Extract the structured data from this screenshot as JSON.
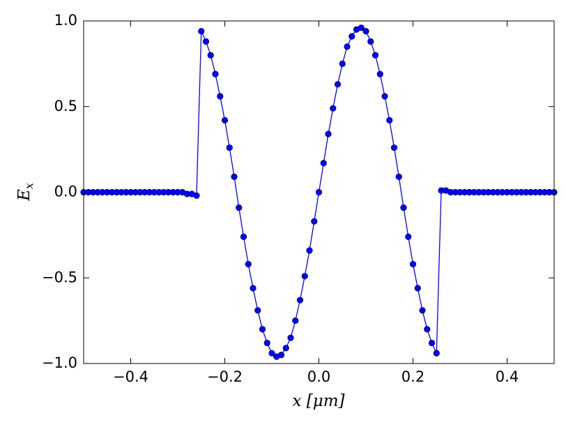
{
  "chart_data": {
    "type": "line",
    "xlabel": "x [μm]",
    "ylabel": {
      "base": "E",
      "sub": "x"
    },
    "x": [
      -0.5,
      -0.49,
      -0.48,
      -0.47,
      -0.46,
      -0.45,
      -0.44,
      -0.43,
      -0.42,
      -0.41,
      -0.4,
      -0.39,
      -0.38,
      -0.37,
      -0.36,
      -0.35,
      -0.34,
      -0.33,
      -0.32,
      -0.31,
      -0.3,
      -0.29,
      -0.28,
      -0.27,
      -0.26,
      -0.25,
      -0.24,
      -0.23,
      -0.22,
      -0.21,
      -0.2,
      -0.19,
      -0.18,
      -0.17,
      -0.16,
      -0.15,
      -0.14,
      -0.13,
      -0.12,
      -0.11,
      -0.1,
      -0.09,
      -0.08,
      -0.07,
      -0.06,
      -0.05,
      -0.04,
      -0.03,
      -0.02,
      -0.01,
      0,
      0.01,
      0.02,
      0.03,
      0.04,
      0.05,
      0.06,
      0.07,
      0.08,
      0.09,
      0.1,
      0.11,
      0.12,
      0.13,
      0.14,
      0.15,
      0.16,
      0.17,
      0.18,
      0.19,
      0.2,
      0.21,
      0.22,
      0.23,
      0.24,
      0.25,
      0.26,
      0.27,
      0.28,
      0.29,
      0.3,
      0.31,
      0.32,
      0.33,
      0.34,
      0.35,
      0.36,
      0.37,
      0.38,
      0.39,
      0.4,
      0.41,
      0.42,
      0.43,
      0.44,
      0.45,
      0.46,
      0.47,
      0.48,
      0.49,
      0.5
    ],
    "values": [
      0,
      0,
      0,
      0,
      0,
      0,
      0,
      0,
      0,
      0,
      0,
      0,
      0,
      0,
      0,
      0,
      0,
      0,
      0,
      0,
      0,
      0,
      -0.01,
      -0.01,
      -0.02,
      0.94,
      0.88,
      0.8,
      0.69,
      0.56,
      0.42,
      0.26,
      0.09,
      -0.09,
      -0.26,
      -0.42,
      -0.56,
      -0.69,
      -0.8,
      -0.88,
      -0.94,
      -0.96,
      -0.95,
      -0.91,
      -0.85,
      -0.75,
      -0.63,
      -0.49,
      -0.34,
      -0.17,
      0,
      0.17,
      0.34,
      0.49,
      0.63,
      0.75,
      0.85,
      0.91,
      0.95,
      0.96,
      0.94,
      0.88,
      0.8,
      0.69,
      0.56,
      0.42,
      0.26,
      0.09,
      -0.09,
      -0.26,
      -0.42,
      -0.56,
      -0.69,
      -0.8,
      -0.88,
      -0.94,
      0.01,
      0.01,
      0,
      0,
      0,
      0,
      0,
      0,
      0,
      0,
      0,
      0,
      0,
      0,
      0,
      0,
      0,
      0,
      0,
      0,
      0,
      0,
      0,
      0,
      0
    ],
    "color": "#0000ff",
    "xlim": [
      -0.5,
      0.5
    ],
    "ylim": [
      -1,
      1
    ],
    "xticks": [
      {
        "value": -0.4,
        "label": "−0.4"
      },
      {
        "value": -0.2,
        "label": "−0.2"
      },
      {
        "value": 0,
        "label": "0.0"
      },
      {
        "value": 0.2,
        "label": "0.2"
      },
      {
        "value": 0.4,
        "label": "0.4"
      }
    ],
    "yticks": [
      {
        "value": -1,
        "label": "−1.0"
      },
      {
        "value": -0.5,
        "label": "−0.5"
      },
      {
        "value": 0,
        "label": "0.0"
      },
      {
        "value": 0.5,
        "label": "0.5"
      },
      {
        "value": 1,
        "label": "1.0"
      }
    ]
  }
}
